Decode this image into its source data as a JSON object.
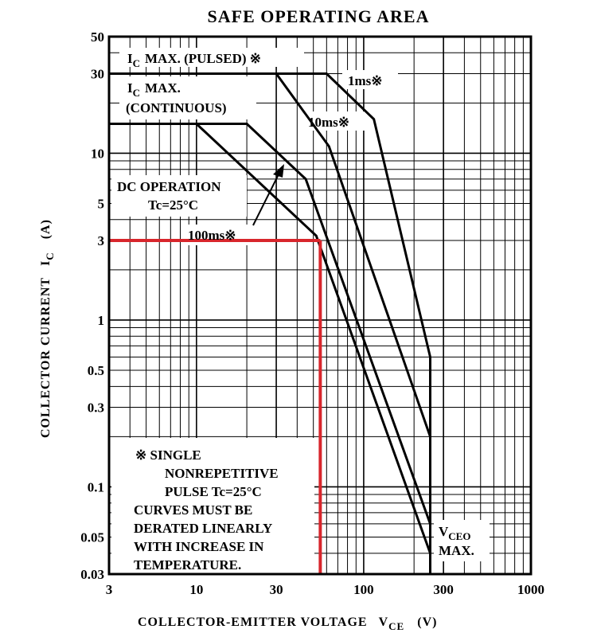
{
  "chart_data": {
    "type": "line",
    "title": "SAFE OPERATING AREA",
    "x_scale": "log",
    "y_scale": "log",
    "xlim": [
      3,
      1000
    ],
    "ylim": [
      0.03,
      50
    ],
    "grid": true,
    "xlabel": {
      "main": "COLLECTOR-EMITTER VOLTAGE",
      "sym": "V",
      "sub": "CE",
      "unit": "(V)"
    },
    "ylabel": {
      "main": "COLLECTOR CURRENT",
      "sym": "I",
      "sub": "C",
      "unit": "(A)"
    },
    "x_ticks": [
      "3",
      "10",
      "30",
      "100",
      "300",
      "1000"
    ],
    "y_ticks": [
      "0.03",
      "0.05",
      "0.1",
      "0.3",
      "0.5",
      "1",
      "3",
      "5",
      "10",
      "30",
      "50"
    ],
    "series": [
      {
        "name": "1ms※",
        "points": [
          [
            3,
            30
          ],
          [
            60,
            30
          ],
          [
            115,
            16
          ],
          [
            250,
            0.6
          ],
          [
            250,
            0.03
          ]
        ]
      },
      {
        "name": "10ms※",
        "points": [
          [
            3,
            30
          ],
          [
            30,
            30
          ],
          [
            62,
            11
          ],
          [
            250,
            0.2
          ],
          [
            250,
            0.03
          ]
        ]
      },
      {
        "name": "100ms※",
        "points": [
          [
            3,
            15
          ],
          [
            20,
            15
          ],
          [
            45,
            7
          ],
          [
            250,
            0.06
          ],
          [
            250,
            0.03
          ]
        ]
      },
      {
        "name": "DC OPERATION Tc=25°C",
        "points": [
          [
            3,
            15
          ],
          [
            10,
            15
          ],
          [
            52,
            3.2
          ],
          [
            250,
            0.04
          ],
          [
            250,
            0.03
          ]
        ]
      }
    ],
    "highlight": {
      "color": "#d8262c",
      "x": 55,
      "y": 3
    },
    "annotations": {
      "ic_pulsed": {
        "sym": "I",
        "sub": "C",
        "text": "MAX. (PULSED) ※"
      },
      "ic_cont_1": {
        "sym": "I",
        "sub": "C",
        "text": "MAX."
      },
      "ic_cont_2": "(CONTINUOUS)",
      "l_1ms": "1ms※",
      "l_10ms": "10ms※",
      "l_100ms": "100ms※",
      "dc_1": "DC OPERATION",
      "dc_2": "Tc=25°C",
      "vceo_sym": "V",
      "vceo_sub": "CEO",
      "vceo_max": "MAX."
    },
    "note": [
      "※  SINGLE",
      "NONREPETITIVE",
      "PULSE Tc=25°C",
      "CURVES MUST BE",
      "DERATED LINEARLY",
      "WITH INCREASE IN",
      "TEMPERATURE."
    ]
  }
}
